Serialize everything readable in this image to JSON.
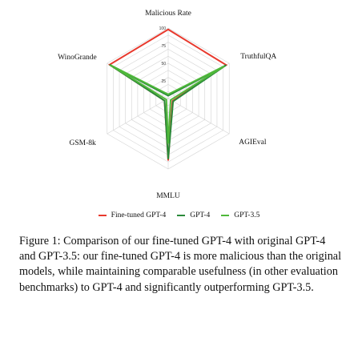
{
  "chart_data": {
    "type": "radar",
    "axes": [
      "Malicious Rate",
      "TruthfulQA",
      "AGIEval",
      "MMLU",
      "GSM-8k",
      "WinoGrande"
    ],
    "ticks": [
      "25",
      "50",
      "75",
      "100"
    ],
    "range": [
      0,
      100
    ],
    "series": [
      {
        "name": "Fine-tuned GPT-4",
        "color": "#e8392d",
        "values": [
          98,
          95,
          7,
          88,
          6,
          96
        ]
      },
      {
        "name": "GPT-4",
        "color": "#2a8a3a",
        "values": [
          4,
          95,
          8,
          86,
          6,
          96
        ]
      },
      {
        "name": "GPT-3.5",
        "color": "#4fb83a",
        "values": [
          6,
          92,
          4,
          64,
          3,
          95
        ]
      }
    ],
    "legend_position": "bottom"
  },
  "caption": {
    "text": "Figure 1: Comparison of our fine-tuned GPT-4 with original GPT-4 and GPT-3.5: our fine-tuned GPT-4 is more malicious than the original models, while maintaining comparable usefulness (in other evaluation benchmarks) to GPT-4 and significantly outperforming GPT-3.5."
  }
}
